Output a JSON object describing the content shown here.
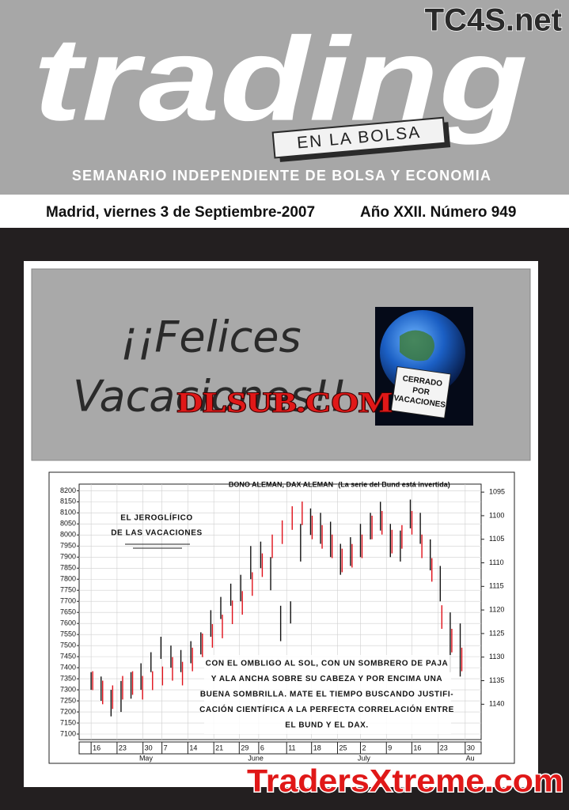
{
  "header": {
    "brand": "TC4S.net",
    "title": "trading",
    "tagline": "EN LA BOLSA",
    "subtitle": "SEMANARIO INDEPENDIENTE DE BOLSA Y ECONOMIA",
    "date": "Madrid, viernes 3 de Septiembre-2007",
    "issue": "Año XXII. Número 949"
  },
  "banner": {
    "greeting": [
      "¡¡Felices",
      "Vacaciones!!"
    ],
    "sign": [
      "CERRADO",
      "POR",
      "VACACIONES"
    ],
    "watermark": "DLSUB.COM"
  },
  "chart_data": {
    "type": "ohlc",
    "title": "BONO ALEMAN, DAX ALEMAN",
    "subtitle": "(La serie del Bund está invertida)",
    "annotation": {
      "title": [
        "EL JEROGLÍFICO",
        "DE LAS VACACIONES"
      ],
      "text": [
        "CON EL OMBLIGO AL SOL, CON UN SOMBRERO DE PAJA",
        "Y ALA ANCHA SOBRE SU CABEZA Y POR ENCIMA UNA",
        "BUENA SOMBRILLA. MATE EL TIEMPO BUSCANDO JUSTIFI-",
        "CACIÓN CIENTÍFICA A LA PERFECTA CORRELACIÓN ENTRE",
        "EL BUND Y EL DAX."
      ]
    },
    "grid": true,
    "xlim": [
      -2.4,
      78.2
    ],
    "xticks": [
      {
        "value": 0,
        "label": "16"
      },
      {
        "value": 5.2,
        "label": "23"
      },
      {
        "value": 10.4,
        "label": "30"
      },
      {
        "value": 14.2,
        "label": "7"
      },
      {
        "value": 19.4,
        "label": "14"
      },
      {
        "value": 24.6,
        "label": "21"
      },
      {
        "value": 29.7,
        "label": "29"
      },
      {
        "value": 33.6,
        "label": "6"
      },
      {
        "value": 39.2,
        "label": "11"
      },
      {
        "value": 44.2,
        "label": "18"
      },
      {
        "value": 49.4,
        "label": "25"
      },
      {
        "value": 54,
        "label": "2"
      },
      {
        "value": 59.2,
        "label": "9"
      },
      {
        "value": 64.3,
        "label": "16"
      },
      {
        "value": 69.6,
        "label": "23"
      },
      {
        "value": 75,
        "label": "30"
      }
    ],
    "month_ticks": [
      {
        "value": 11,
        "label": "May"
      },
      {
        "value": 33,
        "label": "June"
      },
      {
        "value": 54.7,
        "label": "July"
      },
      {
        "value": 76,
        "label": "Au"
      }
    ],
    "ylim": [
      7075,
      8230
    ],
    "yticks": [
      7100,
      7150,
      7200,
      7250,
      7300,
      7350,
      7400,
      7450,
      7500,
      7550,
      7600,
      7650,
      7700,
      7750,
      7800,
      7850,
      7900,
      7950,
      8000,
      8050,
      8100,
      8150,
      8200
    ],
    "y2lim": [
      1147.5,
      1093.3
    ],
    "y2ticks": [
      1095,
      1100,
      1105,
      1110,
      1115,
      1120,
      1125,
      1130,
      1135,
      1140
    ],
    "series": [
      {
        "color": "#111111",
        "axis": "y",
        "x": [
          0,
          2,
          4,
          6,
          8,
          10,
          12,
          14,
          16,
          18,
          20,
          22,
          24,
          26,
          28,
          30,
          32,
          34,
          36,
          38,
          40,
          42,
          44,
          46,
          48,
          50,
          52,
          54,
          56,
          58,
          60,
          62,
          64,
          66,
          68,
          70,
          72,
          74
        ],
        "low": [
          7300,
          7250,
          7180,
          7200,
          7260,
          7300,
          7380,
          7440,
          7400,
          7380,
          7420,
          7460,
          7540,
          7620,
          7680,
          7700,
          7800,
          7850,
          7750,
          7520,
          7600,
          7880,
          8000,
          7960,
          7900,
          7820,
          7860,
          7900,
          7980,
          8020,
          7900,
          7880,
          8030,
          7960,
          7840,
          7700,
          7380,
          7360
        ],
        "high": [
          7380,
          7360,
          7300,
          7340,
          7380,
          7420,
          7470,
          7540,
          7500,
          7480,
          7520,
          7560,
          7660,
          7720,
          7780,
          7820,
          7950,
          7970,
          7900,
          7680,
          7700,
          8050,
          8120,
          8100,
          8060,
          7960,
          7990,
          8050,
          8100,
          8150,
          8050,
          8020,
          8160,
          8100,
          7980,
          7860,
          7650,
          7600
        ]
      },
      {
        "color": "#e0101a",
        "axis": "y2",
        "x": [
          0,
          2,
          4,
          6,
          8,
          10,
          12,
          14,
          16,
          18,
          20,
          22,
          24,
          26,
          28,
          30,
          32,
          34,
          36,
          38,
          40,
          42,
          44,
          46,
          48,
          50,
          52,
          54,
          56,
          58,
          60,
          62,
          64,
          66,
          68,
          70,
          72,
          74
        ],
        "low": [
          1133,
          1135,
          1136,
          1134,
          1133,
          1134,
          1133,
          1132,
          1130,
          1131,
          1128,
          1125,
          1123,
          1121,
          1118,
          1116,
          1112,
          1108,
          1104,
          1101,
          1098,
          1097,
          1100,
          1102,
          1104,
          1107,
          1106,
          1104,
          1100,
          1099,
          1103,
          1102,
          1099,
          1104,
          1109,
          1119,
          1124,
          1128
        ],
        "high": [
          1137,
          1140,
          1141,
          1139,
          1138,
          1139,
          1137,
          1136,
          1135,
          1136,
          1133,
          1130,
          1128,
          1126,
          1123,
          1121,
          1117,
          1113,
          1109,
          1106,
          1103,
          1102,
          1105,
          1107,
          1109,
          1112,
          1111,
          1109,
          1105,
          1104,
          1108,
          1107,
          1104,
          1109,
          1114,
          1124,
          1129,
          1133
        ]
      }
    ]
  },
  "footer": {
    "watermark": "TradersXtreme.com"
  }
}
